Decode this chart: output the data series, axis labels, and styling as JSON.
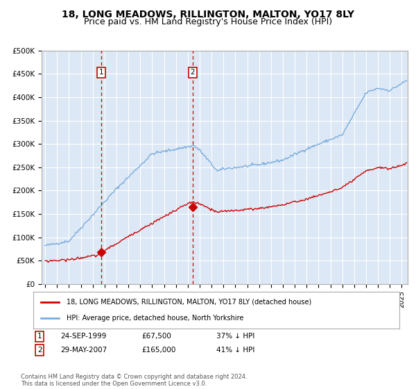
{
  "title": "18, LONG MEADOWS, RILLINGTON, MALTON, YO17 8LY",
  "subtitle": "Price paid vs. HM Land Registry's House Price Index (HPI)",
  "title_fontsize": 10,
  "subtitle_fontsize": 9,
  "background_color": "#ffffff",
  "plot_bg_color": "#dce8f5",
  "grid_color": "#ffffff",
  "ylim": [
    0,
    500000
  ],
  "yticks": [
    0,
    50000,
    100000,
    150000,
    200000,
    250000,
    300000,
    350000,
    400000,
    450000,
    500000
  ],
  "ytick_labels": [
    "£0",
    "£50K",
    "£100K",
    "£150K",
    "£200K",
    "£250K",
    "£300K",
    "£350K",
    "£400K",
    "£450K",
    "£500K"
  ],
  "xlim_start": 1994.7,
  "xlim_end": 2025.5,
  "sale1_date": 1999.73,
  "sale1_price": 67500,
  "sale1_label": "1",
  "sale2_date": 2007.41,
  "sale2_price": 165000,
  "sale2_label": "2",
  "legend_line1": "18, LONG MEADOWS, RILLINGTON, MALTON, YO17 8LY (detached house)",
  "legend_line2": "HPI: Average price, detached house, North Yorkshire",
  "footer": "Contains HM Land Registry data © Crown copyright and database right 2024.\nThis data is licensed under the Open Government Licence v3.0.",
  "hpi_color": "#7aabdc",
  "sale_color": "#cc0000",
  "vline_color": "#cc0000",
  "shade_color": "#dce8f5"
}
